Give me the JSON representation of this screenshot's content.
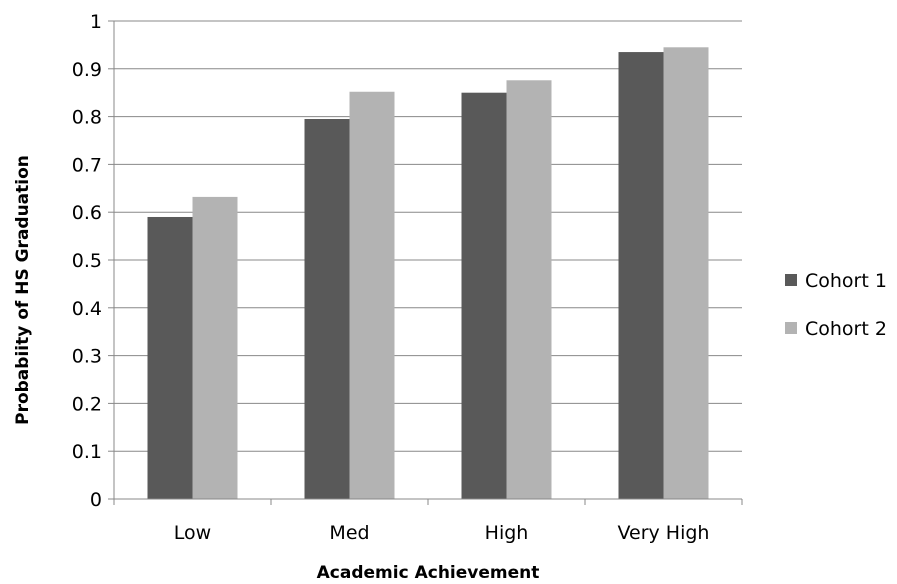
{
  "chart_data": {
    "type": "bar",
    "title": "",
    "xlabel": "Academic Achievement",
    "ylabel": "Probabiity of HS Graduation",
    "categories": [
      "Low",
      "Med",
      "High",
      "Very High"
    ],
    "series": [
      {
        "name": "Cohort 1",
        "color": "#595959",
        "values": [
          0.59,
          0.795,
          0.85,
          0.935
        ]
      },
      {
        "name": "Cohort 2",
        "color": "#b3b3b3",
        "values": [
          0.632,
          0.852,
          0.876,
          0.945
        ]
      }
    ],
    "ylim": [
      0,
      1
    ],
    "yticks": [
      "0",
      "0.1",
      "0.2",
      "0.3",
      "0.4",
      "0.5",
      "0.6",
      "0.7",
      "0.8",
      "0.9",
      "1"
    ],
    "grid": true,
    "legend_position": "right"
  }
}
